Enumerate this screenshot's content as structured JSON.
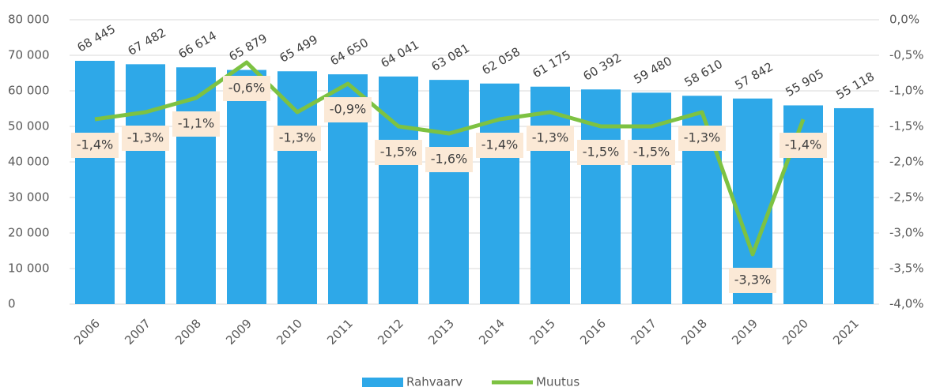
{
  "chart_data": {
    "type": "bar",
    "categories": [
      "2006",
      "2007",
      "2008",
      "2009",
      "2010",
      "2011",
      "2012",
      "2013",
      "2014",
      "2015",
      "2016",
      "2017",
      "2018",
      "2019",
      "2020",
      "2021"
    ],
    "series": [
      {
        "name": "Rahvaarv",
        "type": "bar",
        "color": "#2ea8e8",
        "values": [
          68445,
          67482,
          66614,
          65879,
          65499,
          64650,
          64041,
          63081,
          62058,
          61175,
          60392,
          59480,
          58610,
          57842,
          55905,
          55118
        ],
        "value_labels": [
          "68 445",
          "67 482",
          "66 614",
          "65 879",
          "65 499",
          "64 650",
          "64 041",
          "63 081",
          "62 058",
          "61 175",
          "60 392",
          "59 480",
          "58 610",
          "57 842",
          "55 905",
          "55 118"
        ]
      },
      {
        "name": "Muutus",
        "type": "line",
        "axis": "y2",
        "color": "#7dc242",
        "values": [
          -1.4,
          -1.3,
          -1.1,
          -0.6,
          -1.3,
          -0.9,
          -1.5,
          -1.6,
          -1.4,
          -1.3,
          -1.5,
          -1.5,
          -1.3,
          -3.3,
          -1.4,
          null
        ],
        "value_labels": [
          "-1,4%",
          "-1,3%",
          "-1,1%",
          "-0,6%",
          "-1,3%",
          "-0,9%",
          "-1,5%",
          "-1,6%",
          "-1,4%",
          "-1,3%",
          "-1,5%",
          "-1,5%",
          "-1,3%",
          "-3,3%",
          "-1,4%",
          null
        ]
      }
    ],
    "ylim": [
      0,
      80000
    ],
    "yticks": [
      0,
      {
        "value": 10000,
        "label": "10 000"
      },
      {
        "value": 20000,
        "label": "20 000"
      },
      {
        "value": 30000,
        "label": "30 000"
      },
      {
        "value": 40000,
        "label": "40 000"
      },
      {
        "value": 50000,
        "label": "50 000"
      },
      {
        "value": 60000,
        "label": "60 000"
      },
      {
        "value": 70000,
        "label": "70 000"
      },
      {
        "value": 80000,
        "label": "80 000"
      }
    ],
    "y2lim": [
      -4.0,
      0.0
    ],
    "y2ticks": [
      {
        "value": -4.0,
        "label": "-4,0%"
      },
      {
        "value": -3.5,
        "label": "-3,5%"
      },
      {
        "value": -3.0,
        "label": "-3,0%"
      },
      {
        "value": -2.5,
        "label": "-2,5%"
      },
      {
        "value": -2.0,
        "label": "-2,0%"
      },
      {
        "value": -1.5,
        "label": "-1,5%"
      },
      {
        "value": -1.0,
        "label": "-1,0%"
      },
      {
        "value": -0.5,
        "label": "-0,5%"
      },
      {
        "value": 0.0,
        "label": "0,0%"
      }
    ],
    "grid": true,
    "legend": "bottom"
  }
}
